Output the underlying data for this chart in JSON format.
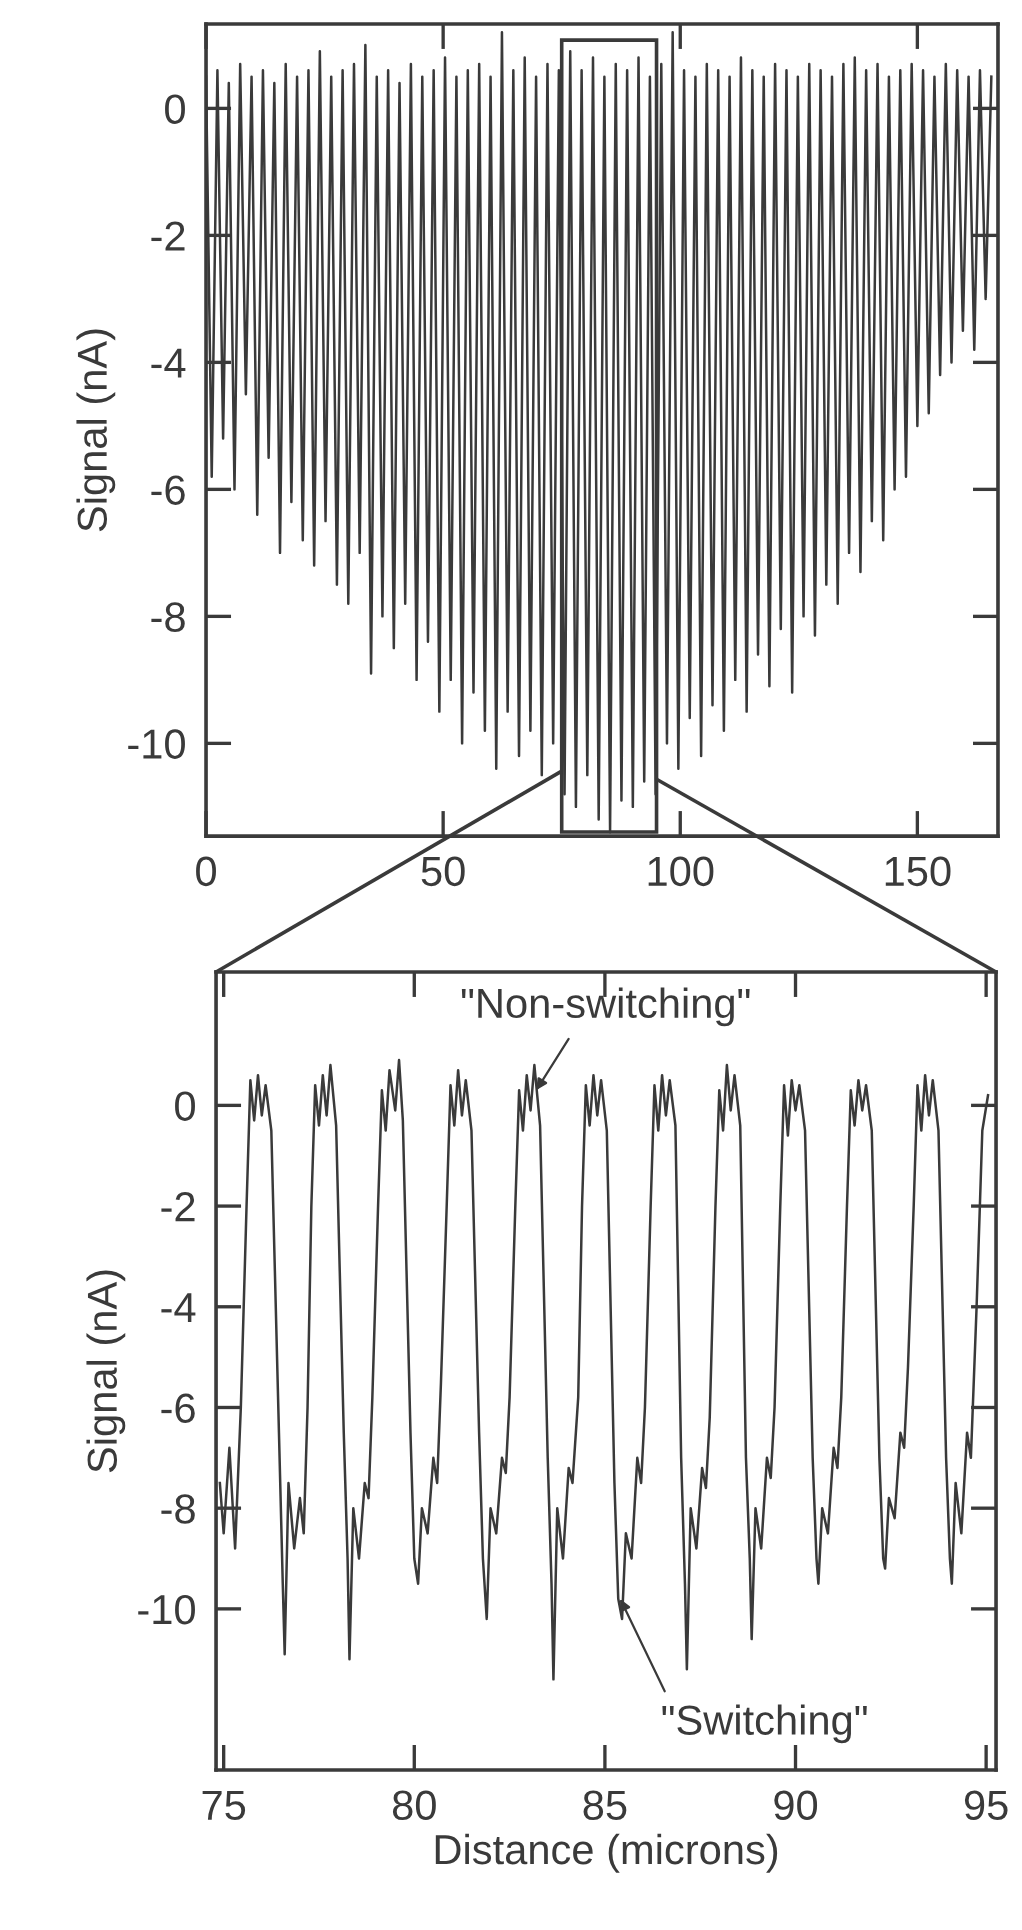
{
  "chart_data": [
    {
      "type": "line",
      "ylabel": "Signal (nA)",
      "xlim": [
        0,
        167
      ],
      "ylim": [
        -11.46,
        1.33
      ],
      "xticks": [
        0,
        50,
        100,
        150
      ],
      "yticks": [
        0,
        -2,
        -4,
        -6,
        -8,
        -10
      ],
      "grid": false,
      "series": [
        {
          "color": "#3a3a3a",
          "x": [
            0,
            1.2,
            2.4,
            3.6,
            4.8,
            6,
            7.2,
            8.4,
            9.6,
            10.8,
            12,
            13.2,
            14.4,
            15.6,
            16.8,
            18,
            19.2,
            20.4,
            21.6,
            22.8,
            24,
            25.2,
            26.4,
            27.6,
            28.8,
            30,
            31.2,
            32.4,
            33.6,
            34.8,
            36,
            37.2,
            38.4,
            39.6,
            40.8,
            42,
            43.2,
            44.4,
            45.6,
            46.8,
            48,
            49.2,
            50.4,
            51.6,
            52.8,
            54,
            55.2,
            56.4,
            57.6,
            58.8,
            60,
            61.2,
            62.4,
            63.6,
            64.8,
            66,
            67.2,
            68.4,
            69.6,
            70.8,
            72,
            73.2,
            74.4,
            75.6,
            76.8,
            78,
            79.2,
            80.4,
            81.6,
            82.8,
            84,
            85.2,
            86.4,
            87.6,
            88.8,
            90,
            91.2,
            92.4,
            93.6,
            94.8,
            96,
            97.2,
            98.4,
            99.6,
            100.8,
            102,
            103.2,
            104.4,
            105.6,
            106.8,
            108,
            109.2,
            110.4,
            111.6,
            112.8,
            114,
            115.2,
            116.4,
            117.6,
            118.8,
            120,
            121.2,
            122.4,
            123.6,
            124.8,
            126,
            127.2,
            128.4,
            129.6,
            130.8,
            132,
            133.2,
            134.4,
            135.6,
            136.8,
            138,
            139.2,
            140.4,
            141.6,
            142.8,
            144,
            145.2,
            146.4,
            147.6,
            148.8,
            150,
            151.2,
            152.4,
            153.6,
            154.8,
            156,
            157.2,
            158.4,
            159.6,
            160.8,
            162,
            163.2,
            164.4,
            165.6
          ],
          "values": [
            0.5,
            -5.8,
            0.6,
            -5.2,
            0.4,
            -6.0,
            0.7,
            -4.5,
            0.5,
            -6.4,
            0.6,
            -5.5,
            0.4,
            -7.0,
            0.7,
            -6.2,
            0.5,
            -6.8,
            0.6,
            -7.2,
            0.9,
            -6.5,
            0.5,
            -7.5,
            0.6,
            -7.8,
            0.7,
            -7.0,
            1.0,
            -8.9,
            0.5,
            -8.0,
            0.6,
            -8.5,
            0.4,
            -7.8,
            0.7,
            -9.0,
            0.5,
            -8.4,
            0.6,
            -9.5,
            0.8,
            -9.0,
            0.5,
            -10.0,
            0.6,
            -9.2,
            0.7,
            -9.8,
            0.5,
            -10.4,
            1.2,
            -9.5,
            0.6,
            -10.2,
            0.8,
            -9.8,
            0.5,
            -10.5,
            0.7,
            -10.0,
            0.6,
            -10.8,
            0.9,
            -11.0,
            0.6,
            -10.5,
            0.8,
            -11.2,
            0.5,
            -11.4,
            0.7,
            -10.9,
            0.6,
            -11.0,
            0.8,
            -10.6,
            0.5,
            -10.8,
            0.7,
            -10.0,
            1.2,
            -10.4,
            0.6,
            -9.6,
            0.5,
            -10.2,
            0.7,
            -9.4,
            0.6,
            -9.8,
            0.5,
            -9.0,
            0.8,
            -9.5,
            0.6,
            -8.6,
            0.5,
            -9.1,
            0.7,
            -8.2,
            0.6,
            -9.2,
            0.5,
            -8.0,
            0.7,
            -8.3,
            0.6,
            -7.5,
            0.5,
            -7.8,
            0.7,
            -7.0,
            0.8,
            -7.3,
            0.6,
            -6.5,
            0.7,
            -6.8,
            0.5,
            -6.0,
            0.6,
            -5.8,
            0.7,
            -5.0,
            0.6,
            -4.8,
            0.5,
            -4.2,
            0.7,
            -4.0,
            0.6,
            -3.5,
            0.5,
            -3.8,
            0.6,
            -3.0,
            0.5
          ]
        }
      ]
    },
    {
      "type": "line",
      "xlabel": "Distance (microns)",
      "ylabel": "Signal (nA)",
      "xlim": [
        74.8,
        95.26
      ],
      "ylim": [
        -13.2,
        2.65
      ],
      "xticks": [
        75,
        80,
        85,
        90,
        95
      ],
      "yticks": [
        0,
        -2,
        -4,
        -6,
        -8,
        -10
      ],
      "grid": false,
      "annotations": [
        {
          "text": "\"Non-switching\"",
          "x": 83.2,
          "y": 0.3
        },
        {
          "text": "\"Switching\"",
          "x": 85.4,
          "y": -9.8
        }
      ],
      "series": [
        {
          "color": "#3a3a3a",
          "x": [
            74.9,
            75.0,
            75.15,
            75.3,
            75.45,
            75.6,
            75.7,
            75.8,
            75.9,
            76.0,
            76.1,
            76.25,
            76.45,
            76.55,
            76.6,
            76.7,
            76.85,
            77.0,
            77.1,
            77.2,
            77.3,
            77.4,
            77.5,
            77.6,
            77.7,
            77.8,
            77.95,
            78.15,
            78.25,
            78.3,
            78.4,
            78.55,
            78.7,
            78.8,
            78.9,
            79.05,
            79.15,
            79.25,
            79.35,
            79.5,
            79.6,
            79.7,
            79.9,
            80.0,
            80.1,
            80.2,
            80.35,
            80.5,
            80.6,
            80.7,
            80.85,
            80.95,
            81.05,
            81.15,
            81.25,
            81.35,
            81.5,
            81.7,
            81.8,
            81.9,
            82.0,
            82.15,
            82.3,
            82.4,
            82.5,
            82.65,
            82.75,
            82.85,
            82.95,
            83.05,
            83.15,
            83.3,
            83.5,
            83.6,
            83.65,
            83.75,
            83.9,
            84.05,
            84.15,
            84.3,
            84.4,
            84.5,
            84.6,
            84.7,
            84.8,
            84.9,
            85.05,
            85.25,
            85.35,
            85.45,
            85.55,
            85.7,
            85.85,
            85.95,
            86.05,
            86.2,
            86.3,
            86.4,
            86.5,
            86.6,
            86.7,
            86.85,
            87.0,
            87.1,
            87.15,
            87.25,
            87.4,
            87.55,
            87.65,
            87.75,
            87.9,
            88.0,
            88.1,
            88.2,
            88.3,
            88.4,
            88.55,
            88.7,
            88.8,
            88.85,
            88.95,
            89.1,
            89.25,
            89.35,
            89.45,
            89.6,
            89.7,
            89.8,
            89.9,
            90.0,
            90.1,
            90.25,
            90.45,
            90.55,
            90.6,
            90.7,
            90.85,
            91.0,
            91.1,
            91.2,
            91.35,
            91.45,
            91.55,
            91.65,
            91.75,
            91.85,
            92.0,
            92.2,
            92.3,
            92.35,
            92.45,
            92.6,
            92.75,
            92.85,
            92.95,
            93.1,
            93.2,
            93.3,
            93.4,
            93.5,
            93.6,
            93.75,
            93.95,
            94.05,
            94.1,
            94.2,
            94.35,
            94.5,
            94.6,
            94.75,
            94.9,
            95.05
          ],
          "values": [
            -7.5,
            -8.5,
            -6.8,
            -8.8,
            -6.0,
            -2.0,
            0.5,
            -0.3,
            0.6,
            -0.2,
            0.4,
            -0.5,
            -6.5,
            -9.5,
            -10.9,
            -7.5,
            -8.8,
            -7.8,
            -8.5,
            -6.0,
            -2.0,
            0.4,
            -0.4,
            0.6,
            -0.2,
            0.8,
            -0.4,
            -6.5,
            -9.0,
            -11.0,
            -8.0,
            -9.0,
            -7.5,
            -7.8,
            -5.8,
            -2.0,
            0.3,
            -0.5,
            0.7,
            -0.1,
            0.9,
            -0.3,
            -6.5,
            -9.0,
            -9.5,
            -8.0,
            -8.5,
            -7.0,
            -7.5,
            -5.5,
            -2.0,
            0.4,
            -0.4,
            0.7,
            -0.2,
            0.5,
            -0.5,
            -6.5,
            -9.0,
            -10.2,
            -8.0,
            -8.5,
            -7.0,
            -7.3,
            -5.8,
            -2.0,
            0.3,
            -0.5,
            0.6,
            -0.1,
            0.8,
            -0.4,
            -7.0,
            -9.5,
            -11.4,
            -8.0,
            -9.0,
            -7.2,
            -7.5,
            -5.8,
            -2.0,
            0.4,
            -0.4,
            0.6,
            -0.2,
            0.5,
            -0.5,
            -7.5,
            -9.8,
            -10.2,
            -8.5,
            -9.0,
            -7.0,
            -7.5,
            -6.0,
            -2.0,
            0.4,
            -0.5,
            0.6,
            -0.2,
            0.5,
            -0.4,
            -7.0,
            -9.5,
            -11.2,
            -8.0,
            -8.8,
            -7.2,
            -7.6,
            -6.2,
            -2.0,
            0.3,
            -0.5,
            0.8,
            -0.1,
            0.6,
            -0.4,
            -7.0,
            -9.0,
            -10.6,
            -8.0,
            -8.8,
            -7.0,
            -7.4,
            -6.0,
            -2.0,
            0.4,
            -0.6,
            0.5,
            -0.1,
            0.4,
            -0.5,
            -7.0,
            -9.0,
            -9.5,
            -8.0,
            -8.5,
            -6.8,
            -7.2,
            -5.8,
            -2.0,
            0.3,
            -0.4,
            0.5,
            -0.1,
            0.4,
            -0.5,
            -7.0,
            -9.0,
            -9.2,
            -7.8,
            -8.2,
            -6.5,
            -6.8,
            -5.2,
            -2.0,
            0.4,
            -0.5,
            0.6,
            -0.2,
            0.5,
            -0.5,
            -7.0,
            -9.0,
            -9.5,
            -7.5,
            -8.5,
            -6.5,
            -7.0,
            -4.0,
            -0.5,
            0.2
          ]
        }
      ]
    }
  ]
}
